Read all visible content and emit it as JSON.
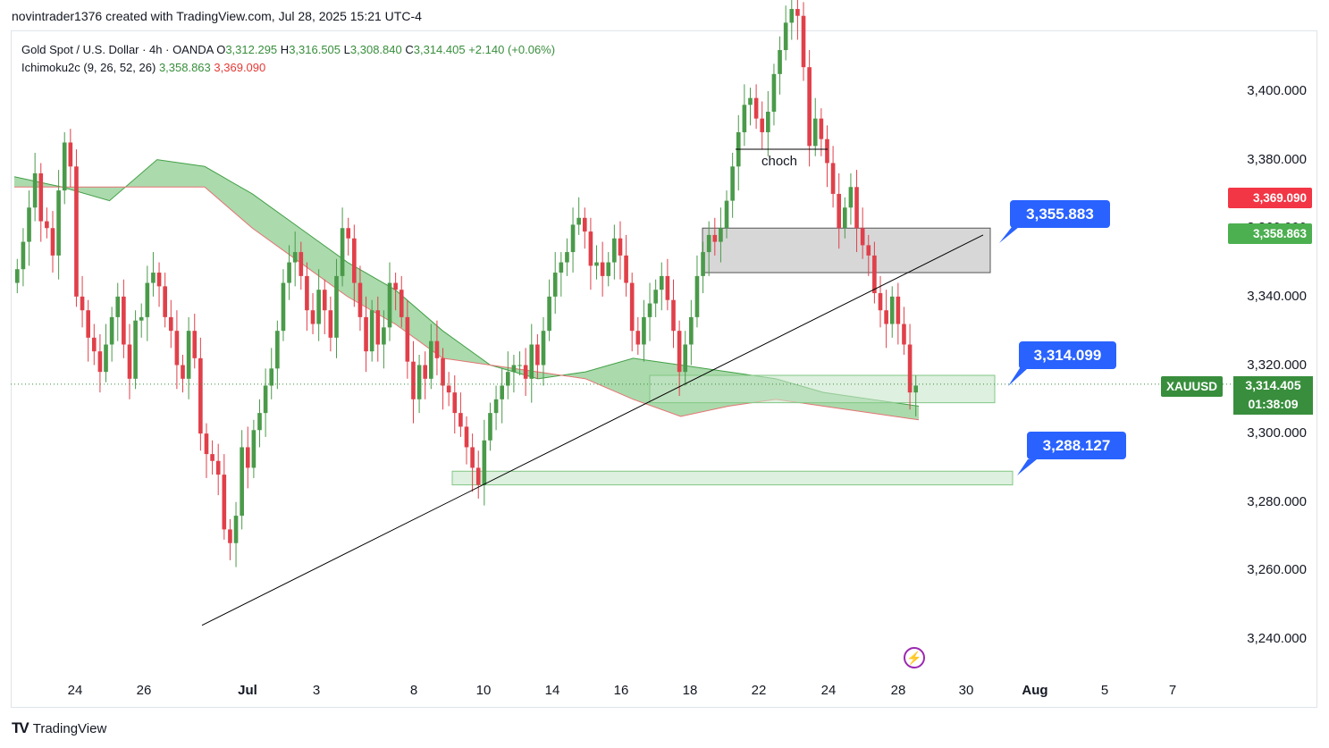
{
  "header": {
    "text": "novintrader1376 created with TradingView.com, Jul 28, 2025 15:21 UTC-4"
  },
  "legend": {
    "symbol": "Gold Spot / U.S. Dollar · 4h · OANDA",
    "open_label": "O",
    "open": "3,312.295",
    "high_label": "H",
    "high": "3,316.505",
    "low_label": "L",
    "low": "3,308.840",
    "close_label": "C",
    "close": "3,314.405",
    "change": "+2.140 (+0.06%)",
    "indicator": "Ichimoku2c (9, 26, 52, 26)",
    "ind_val1": "3,358.863",
    "ind_val2": "3,369.090"
  },
  "price_tags": {
    "span_b": "3,369.090",
    "span_a": "3,358.863",
    "symbol_tag": "XAUUSD",
    "last_price": "3,314.405",
    "countdown": "01:38:09"
  },
  "callouts": {
    "c1": "3,355.883",
    "c2": "3,314.099",
    "c3": "3,288.127"
  },
  "annotation": {
    "choch": "choch"
  },
  "footer": {
    "brand": "TradingView",
    "logo": "TV"
  },
  "icons": {
    "bolt": "lightning-icon"
  },
  "colors": {
    "up": "#4a9a4a",
    "down": "#e0404a",
    "cloud": "#66bb6a",
    "accent": "#2962ff",
    "red_tag": "#f23645",
    "green_tag": "#4caf50"
  },
  "chart_data": {
    "type": "candlestick",
    "title": "Gold Spot / U.S. Dollar · 4h · OANDA",
    "y_ticks": [
      "3,400.000",
      "3,380.000",
      "3,360.000",
      "3,340.000",
      "3,320.000",
      "3,300.000",
      "3,280.000",
      "3,260.000",
      "3,240.000"
    ],
    "y_tick_values": [
      3400,
      3380,
      3360,
      3340,
      3320,
      3300,
      3280,
      3260,
      3240
    ],
    "x_ticks": [
      "24",
      "26",
      "Jul",
      "3",
      "8",
      "10",
      "14",
      "16",
      "18",
      "22",
      "24",
      "28",
      "30",
      "Aug",
      "5",
      "7"
    ],
    "ylim": [
      3225,
      3418
    ],
    "last_price": 3314.405,
    "series_close": [
      3348,
      3356,
      3366,
      3376,
      3362,
      3360,
      3352,
      3371,
      3385,
      3378,
      3340,
      3336,
      3328,
      3324,
      3318,
      3326,
      3334,
      3340,
      3326,
      3316,
      3333,
      3334,
      3344,
      3347,
      3343,
      3334,
      3330,
      3320,
      3316,
      3330,
      3322,
      3300,
      3294,
      3292,
      3288,
      3272,
      3268,
      3276,
      3296,
      3290,
      3301,
      3306,
      3314,
      3319,
      3330,
      3344,
      3350,
      3353,
      3346,
      3336,
      3332,
      3342,
      3336,
      3328,
      3346,
      3360,
      3357,
      3344,
      3334,
      3324,
      3336,
      3326,
      3331,
      3344,
      3342,
      3334,
      3321,
      3310,
      3320,
      3316,
      3327,
      3322,
      3314,
      3312,
      3306,
      3302,
      3296,
      3290,
      3285,
      3298,
      3306,
      3310,
      3314,
      3318,
      3320,
      3320,
      3316,
      3326,
      3320,
      3330,
      3340,
      3347,
      3350,
      3353,
      3361,
      3363,
      3359,
      3349,
      3350,
      3346,
      3350,
      3357,
      3352,
      3344,
      3330,
      3326,
      3334,
      3338,
      3342,
      3346,
      3339,
      3330,
      3318,
      3326,
      3334,
      3346,
      3353,
      3358,
      3356,
      3360,
      3368,
      3378,
      3388,
      3396,
      3398,
      3392,
      3388,
      3394,
      3405,
      3412,
      3420,
      3424,
      3422,
      3407,
      3384,
      3392,
      3386,
      3379,
      3370,
      3360,
      3366,
      3372,
      3360,
      3355,
      3352,
      3341,
      3336,
      3332,
      3340,
      3332,
      3326,
      3312,
      3314
    ],
    "cloud_span_a": [
      3375,
      3372,
      3368,
      3380,
      3378,
      3370,
      3360,
      3350,
      3342,
      3330,
      3320,
      3316,
      3318,
      3322,
      3320,
      3318,
      3316,
      3312,
      3310,
      3308
    ],
    "cloud_span_b": [
      3372,
      3372,
      3372,
      3372,
      3372,
      3360,
      3350,
      3340,
      3332,
      3322,
      3320,
      3318,
      3316,
      3310,
      3305,
      3308,
      3310,
      3308,
      3306,
      3304
    ],
    "zones": [
      {
        "label": "3,355.883",
        "from": 3347,
        "to": 3360
      },
      {
        "label": "3,314.099",
        "from": 3309,
        "to": 3317
      },
      {
        "label": "3,288.127",
        "from": 3285,
        "to": 3289
      }
    ],
    "trendline": {
      "start": 3244,
      "end": 3358
    }
  }
}
